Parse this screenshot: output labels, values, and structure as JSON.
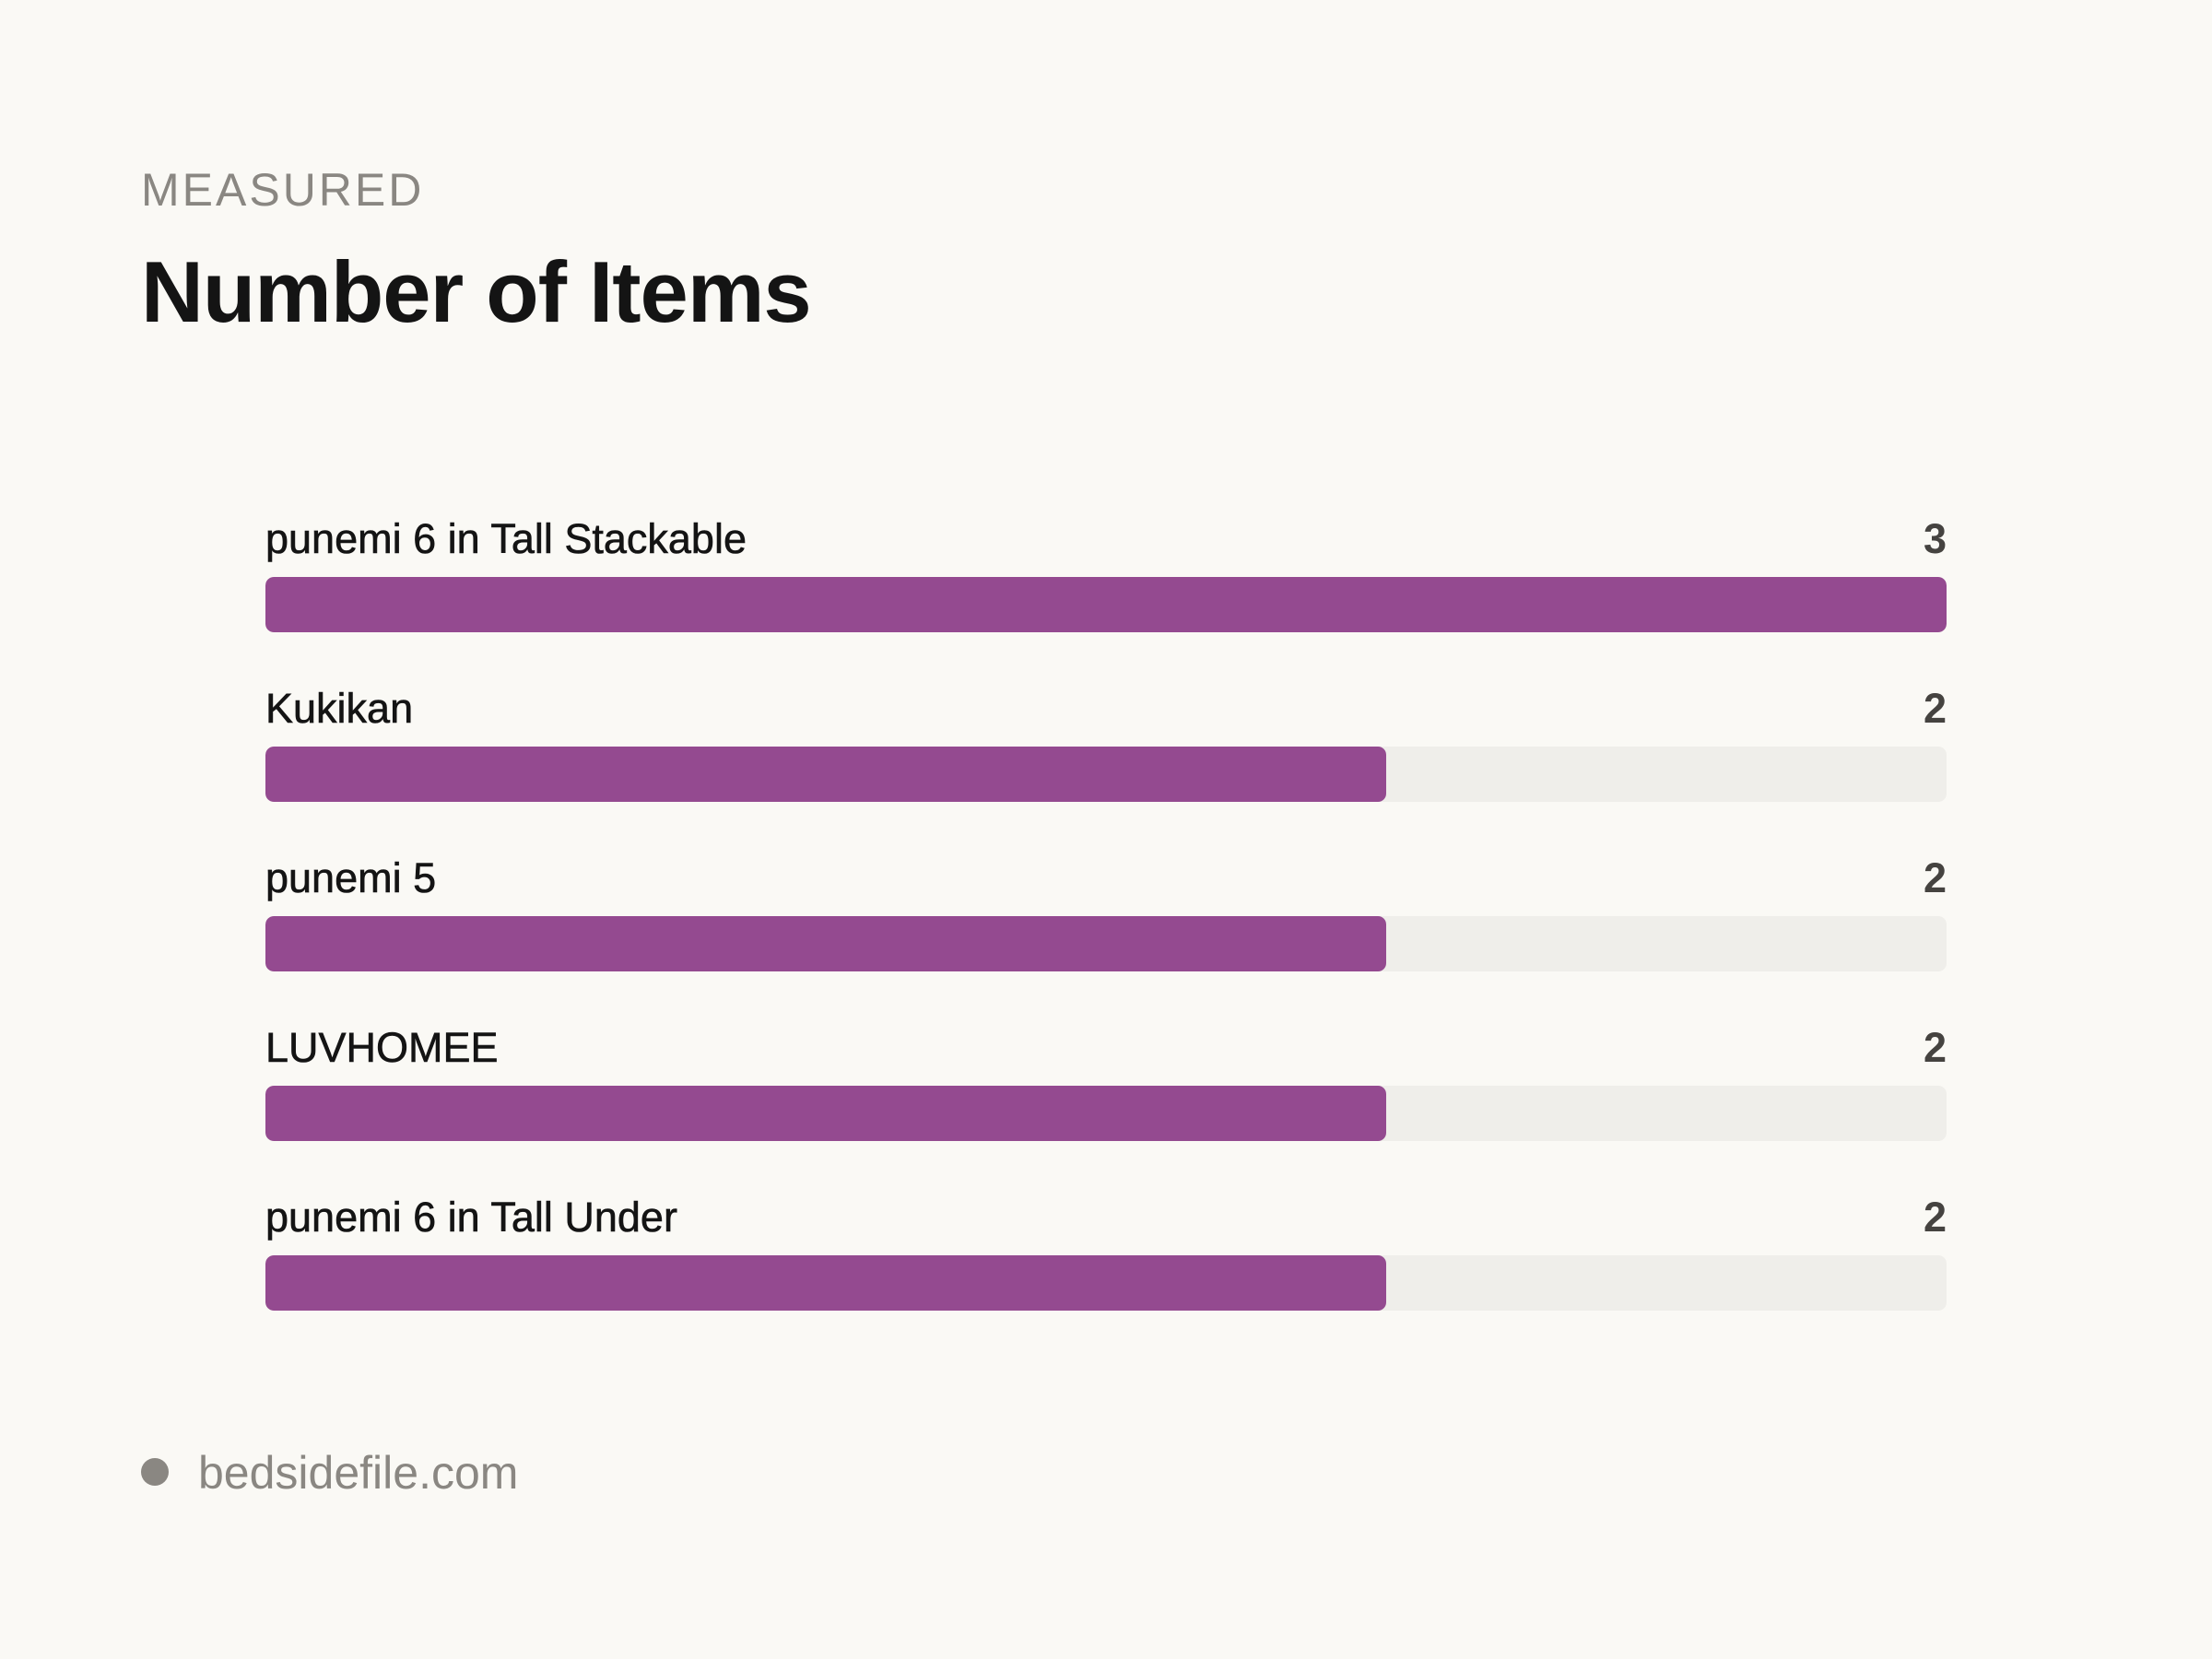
{
  "header": {
    "eyebrow": "MEASURED",
    "title": "Number of Items"
  },
  "colors": {
    "bar": "#944a90",
    "track": "#efeeea",
    "background": "#faf9f5"
  },
  "chart_data": {
    "type": "bar",
    "orientation": "horizontal",
    "title": "Number of Items",
    "categories": [
      "punemi 6 in Tall Stackable",
      "Kukikan",
      "punemi 5",
      "LUVHOMEE",
      "punemi 6 in Tall Under"
    ],
    "values": [
      3,
      2,
      2,
      2,
      2
    ],
    "value_labels": [
      "3",
      "2",
      "2",
      "2",
      "2"
    ],
    "xlim": [
      0,
      3
    ],
    "grid": false,
    "legend": "none"
  },
  "footer": {
    "text": "bedsidefile.com"
  }
}
